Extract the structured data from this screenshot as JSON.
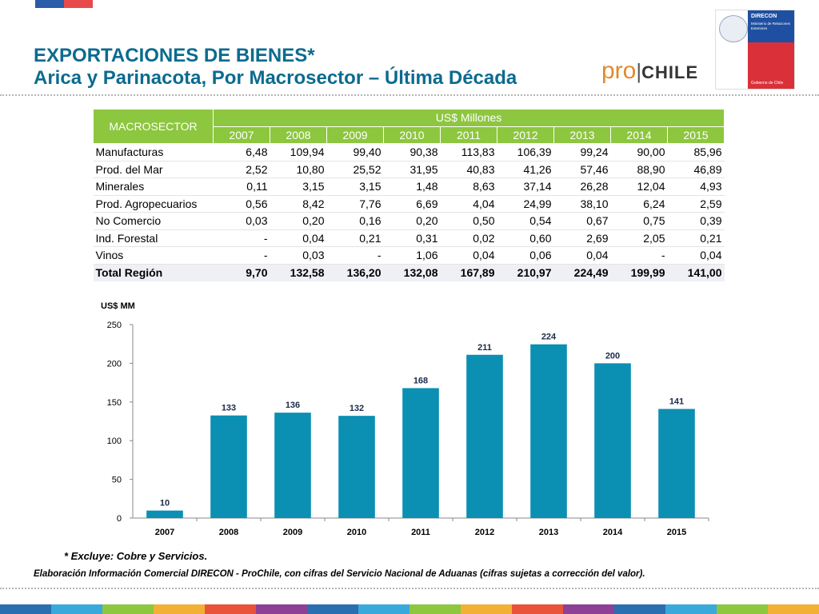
{
  "header": {
    "title_line1": "EXPORTACIONES DE BIENES*",
    "title_line2": "Arica y Parinacota, Por Macrosector – Última Década",
    "prochile_pro": "pro",
    "prochile_bar": "|",
    "prochile_chile": "CHILE",
    "direcon_name": "DIRECON",
    "direcon_sub": "Ministerio de Relaciones Exteriores",
    "direcon_gob": "Gobierno de Chile",
    "colors": {
      "title": "#0b6b8f",
      "table_header": "#8dc63f",
      "bar": "#0b8fb3"
    }
  },
  "table": {
    "col_header": "MACROSECTOR",
    "group_header": "US$ Millones",
    "years": [
      "2007",
      "2008",
      "2009",
      "2010",
      "2011",
      "2012",
      "2013",
      "2014",
      "2015"
    ],
    "rows": [
      {
        "label": "Manufacturas",
        "values": [
          "6,48",
          "109,94",
          "99,40",
          "90,38",
          "113,83",
          "106,39",
          "99,24",
          "90,00",
          "85,96"
        ]
      },
      {
        "label": "Prod. del Mar",
        "values": [
          "2,52",
          "10,80",
          "25,52",
          "31,95",
          "40,83",
          "41,26",
          "57,46",
          "88,90",
          "46,89"
        ]
      },
      {
        "label": "Minerales",
        "values": [
          "0,11",
          "3,15",
          "3,15",
          "1,48",
          "8,63",
          "37,14",
          "26,28",
          "12,04",
          "4,93"
        ]
      },
      {
        "label": "Prod. Agropecuarios",
        "values": [
          "0,56",
          "8,42",
          "7,76",
          "6,69",
          "4,04",
          "24,99",
          "38,10",
          "6,24",
          "2,59"
        ]
      },
      {
        "label": "No Comercio",
        "values": [
          "0,03",
          "0,20",
          "0,16",
          "0,20",
          "0,50",
          "0,54",
          "0,67",
          "0,75",
          "0,39"
        ]
      },
      {
        "label": "Ind. Forestal",
        "values": [
          "-",
          "0,04",
          "0,21",
          "0,31",
          "0,02",
          "0,60",
          "2,69",
          "2,05",
          "0,21"
        ]
      },
      {
        "label": "Vinos",
        "values": [
          "-",
          "0,03",
          "-",
          "1,06",
          "0,04",
          "0,06",
          "0,04",
          "-",
          "0,04"
        ]
      }
    ],
    "total": {
      "label": "Total Región",
      "values": [
        "9,70",
        "132,58",
        "136,20",
        "132,08",
        "167,89",
        "210,97",
        "224,49",
        "199,99",
        "141,00"
      ]
    }
  },
  "chart_data": {
    "type": "bar",
    "categories": [
      "2007",
      "2008",
      "2009",
      "2010",
      "2011",
      "2012",
      "2013",
      "2014",
      "2015"
    ],
    "values": [
      9.7,
      132.58,
      136.2,
      132.08,
      167.89,
      210.97,
      224.49,
      199.99,
      141.0
    ],
    "data_labels": [
      "10",
      "133",
      "136",
      "132",
      "168",
      "211",
      "224",
      "200",
      "141"
    ],
    "ylabel": "US$ MM",
    "ylim": [
      0,
      250
    ],
    "yticks": [
      "0",
      "50",
      "100",
      "150",
      "200",
      "250"
    ],
    "grid": false,
    "legend": false,
    "bar_color": "#0b8fb3"
  },
  "footer": {
    "note": "* Excluye: Cobre y Servicios.",
    "source": "Elaboración Información Comercial DIRECON - ProChile, con cifras del Servicio Nacional de Aduanas (cifras sujetas a corrección del valor).",
    "stripe_colors": [
      "#2a6fb0",
      "#39a9dc",
      "#8dc63f",
      "#f2b134",
      "#e8533a",
      "#8e3f96",
      "#2a6fb0",
      "#39a9dc",
      "#8dc63f",
      "#f2b134",
      "#e8533a",
      "#8e3f96",
      "#2a6fb0",
      "#39a9dc",
      "#8dc63f",
      "#f2b134"
    ]
  }
}
